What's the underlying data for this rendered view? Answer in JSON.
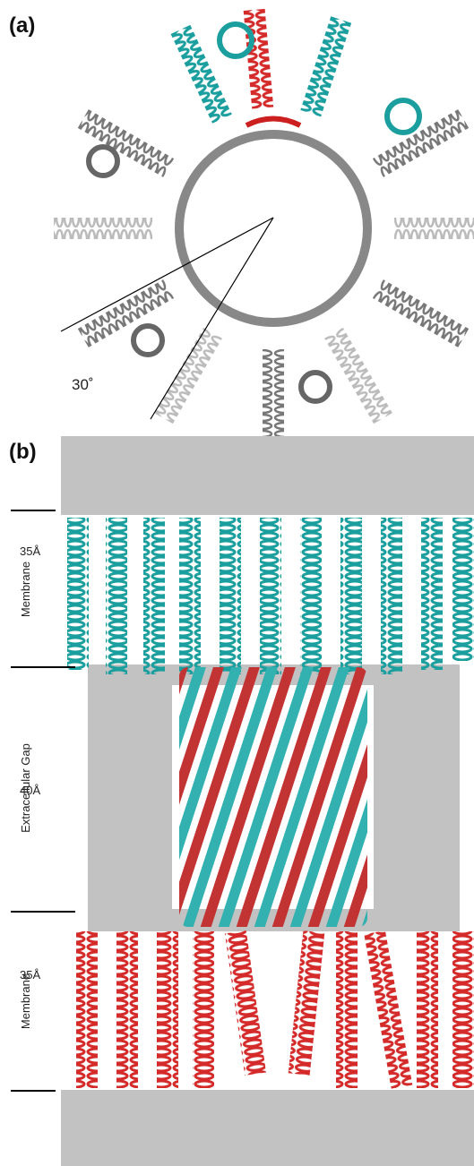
{
  "panel_a": {
    "label": "(a)",
    "angle_label": "30˚"
  },
  "panel_b": {
    "label": "(b)",
    "regions": [
      {
        "name": "Membrane",
        "thickness": "35Å"
      },
      {
        "name": "Extracellular Gap",
        "thickness": "40Å"
      },
      {
        "name": "Membrane",
        "thickness": "35Å"
      }
    ]
  }
}
